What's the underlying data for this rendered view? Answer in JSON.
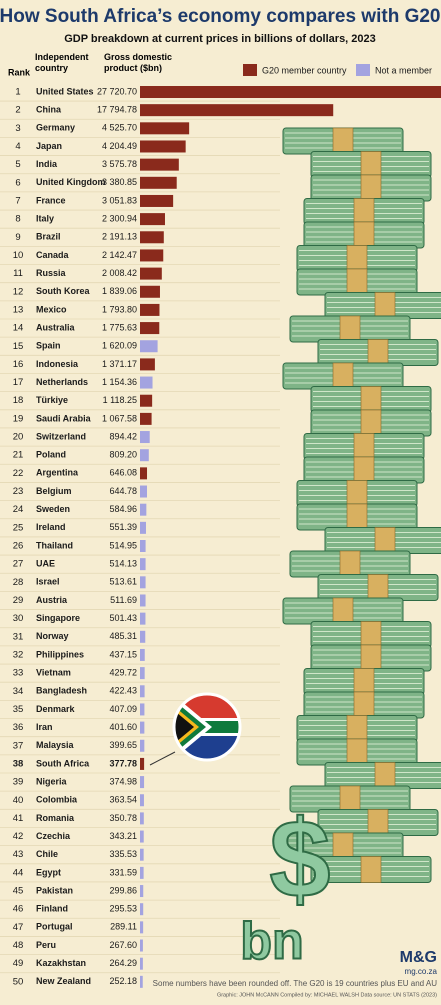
{
  "chart_data": {
    "type": "bar",
    "title": "How South Africa’s economy compares with G20",
    "subtitle": "GDP breakdown at current prices in billions of dollars, 2023",
    "headers": {
      "rank": "Rank",
      "country": "Independent country",
      "value": "Gross domestic product ($bn)"
    },
    "legend": [
      {
        "name": "G20 member country",
        "color": "#8a2a1c"
      },
      {
        "name": "Not a member",
        "color": "#a3a3e0"
      }
    ],
    "ranks": [
      1,
      2,
      3,
      4,
      5,
      6,
      7,
      8,
      9,
      10,
      11,
      12,
      13,
      14,
      15,
      16,
      17,
      18,
      19,
      20,
      21,
      22,
      23,
      24,
      25,
      26,
      27,
      28,
      29,
      30,
      31,
      32,
      33,
      34,
      35,
      36,
      37,
      38,
      39,
      40,
      41,
      42,
      43,
      44,
      45,
      46,
      47,
      48,
      49,
      50
    ],
    "categories": [
      "United States",
      "China",
      "Germany",
      "Japan",
      "India",
      "United Kingdom",
      "France",
      "Italy",
      "Brazil",
      "Canada",
      "Russia",
      "South Korea",
      "Mexico",
      "Australia",
      "Spain",
      "Indonesia",
      "Netherlands",
      "Türkiye",
      "Saudi Arabia",
      "Switzerland",
      "Poland",
      "Argentina",
      "Belgium",
      "Sweden",
      "Ireland",
      "Thailand",
      "UAE",
      "Israel",
      "Austria",
      "Singapore",
      "Norway",
      "Philippines",
      "Vietnam",
      "Bangladesh",
      "Denmark",
      "Iran",
      "Malaysia",
      "South Africa",
      "Nigeria",
      "Colombia",
      "Romania",
      "Czechia",
      "Chile",
      "Egypt",
      "Pakistan",
      "Finland",
      "Portugal",
      "Peru",
      "Kazakhstan",
      "New Zealand"
    ],
    "values": [
      27720.7,
      17794.78,
      4525.7,
      4204.49,
      3575.78,
      3380.85,
      3051.83,
      2300.94,
      2191.13,
      2142.47,
      2008.42,
      1839.06,
      1793.8,
      1775.63,
      1620.09,
      1371.17,
      1154.36,
      1118.25,
      1067.58,
      894.42,
      809.2,
      646.08,
      644.78,
      584.96,
      551.39,
      514.95,
      514.13,
      513.61,
      511.69,
      501.43,
      485.31,
      437.15,
      429.72,
      422.43,
      407.09,
      401.6,
      399.65,
      377.78,
      374.98,
      363.54,
      350.78,
      343.21,
      335.53,
      331.59,
      299.86,
      295.53,
      289.11,
      267.6,
      264.29,
      252.18
    ],
    "value_labels": [
      "27 720.70",
      "17 794.78",
      "4 525.70",
      "4 204.49",
      "3 575.78",
      "3 380.85",
      "3 051.83",
      "2 300.94",
      "2 191.13",
      "2 142.47",
      "2 008.42",
      "1 839.06",
      "1 793.80",
      "1 775.63",
      "1 620.09",
      "1 371.17",
      "1 154.36",
      "1 118.25",
      "1 067.58",
      "894.42",
      "809.20",
      "646.08",
      "644.78",
      "584.96",
      "551.39",
      "514.95",
      "514.13",
      "513.61",
      "511.69",
      "501.43",
      "485.31",
      "437.15",
      "429.72",
      "422.43",
      "407.09",
      "401.60",
      "399.65",
      "377.78",
      "374.98",
      "363.54",
      "350.78",
      "343.21",
      "335.53",
      "331.59",
      "299.86",
      "295.53",
      "289.11",
      "267.60",
      "264.29",
      "252.18"
    ],
    "g20": [
      true,
      true,
      true,
      true,
      true,
      true,
      true,
      true,
      true,
      true,
      true,
      true,
      true,
      true,
      false,
      true,
      false,
      true,
      true,
      false,
      false,
      true,
      false,
      false,
      false,
      false,
      false,
      false,
      false,
      false,
      false,
      false,
      false,
      false,
      false,
      false,
      false,
      true,
      false,
      false,
      false,
      false,
      false,
      false,
      false,
      false,
      false,
      false,
      false,
      false
    ],
    "highlight": "South Africa",
    "illustration": {
      "symbol": "$",
      "unit": "bn"
    },
    "note": "Some numbers have been rounded off. The G20 is 19 countries plus EU and AU",
    "credits": "Graphic: JOHN McCANN  Compiled by: MICHAEL WALSH  Data source: UN STATS (2023)",
    "brand": "M&G",
    "website": "mg.co.za"
  }
}
